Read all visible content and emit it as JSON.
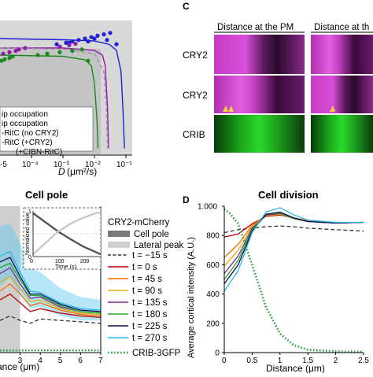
{
  "panel_c": {
    "letter": "C",
    "col_titles": [
      "Distance at the PM",
      "Distance at th"
    ],
    "row_labels": [
      "CRY2",
      "CRY2",
      "CRIB"
    ]
  },
  "chart_data": [
    {
      "panel": "B-top (partial)",
      "type": "line",
      "xlabel_prefix": "D",
      "xlabel_unit": "(μm²/s)",
      "xticks": [
        "10⁻⁴",
        "10⁻³",
        "10⁻²",
        "10⁻¹"
      ],
      "xtick_partial": "-5",
      "legend": [
        "ip occupation",
        "ip occupation",
        "-RitC (no CRY2)",
        "-RitC (+CRY2)",
        "(+CIBN-RitC)"
      ],
      "series": [
        {
          "color": "#1f1fd6",
          "x": [
            1e-05,
            0.001,
            0.01,
            0.03,
            0.05,
            0.07,
            0.08,
            0.09
          ],
          "y": [
            0.98,
            0.97,
            0.96,
            0.93,
            0.88,
            0.7,
            0.4,
            0.05
          ]
        },
        {
          "color": "#8e1ca8",
          "x": [
            1e-05,
            0.001,
            0.01,
            0.018,
            0.022,
            0.026,
            0.028
          ],
          "y": [
            0.9,
            0.9,
            0.88,
            0.84,
            0.75,
            0.4,
            0.05
          ]
        },
        {
          "color": "#1a8a1a",
          "x": [
            1e-05,
            0.001,
            0.005,
            0.008,
            0.01,
            0.012,
            0.013
          ],
          "y": [
            0.84,
            0.83,
            0.8,
            0.75,
            0.6,
            0.3,
            0.05
          ]
        },
        {
          "color": "#999999",
          "dash": true,
          "x": [
            1e-05,
            0.001,
            0.01,
            0.02,
            0.024,
            0.026
          ],
          "y": [
            0.9,
            0.89,
            0.85,
            0.7,
            0.4,
            0.05
          ]
        }
      ]
    },
    {
      "panel": "B",
      "type": "line",
      "title": "Cell pole",
      "xlabel": "Distance (μm)",
      "xlabel_partial": "ance (μm)",
      "xlim": [
        2,
        7
      ],
      "xticks": [
        3,
        4,
        5,
        6,
        7
      ],
      "ylim": [
        0,
        1
      ],
      "shaded_band_x": [
        2,
        3
      ],
      "legend_title": "CRY2-mCherry",
      "legend_gray": [
        "Cell pole",
        "Lateral peak"
      ],
      "series": [
        {
          "name": "t = −15 s",
          "color": "#333333",
          "dash": true,
          "x": [
            2.0,
            2.5,
            3.0,
            3.5,
            4.0,
            5.0,
            6.0,
            7.0
          ],
          "y": [
            0.22,
            0.25,
            0.22,
            0.2,
            0.23,
            0.22,
            0.21,
            0.2
          ]
        },
        {
          "name": "t = 0 s",
          "color": "#c00000",
          "x": [
            2.0,
            2.5,
            3.0,
            3.5,
            4.0,
            5.0,
            6.0,
            7.0
          ],
          "y": [
            0.36,
            0.4,
            0.34,
            0.28,
            0.3,
            0.27,
            0.25,
            0.24
          ]
        },
        {
          "name": "t = 45 s",
          "color": "#ff6a00",
          "x": [
            2.0,
            2.5,
            3.0,
            3.5,
            4.0,
            5.0,
            6.0,
            7.0
          ],
          "y": [
            0.42,
            0.47,
            0.4,
            0.32,
            0.34,
            0.29,
            0.26,
            0.25
          ]
        },
        {
          "name": "t = 90 s",
          "color": "#e0b000",
          "x": [
            2.0,
            2.5,
            3.0,
            3.5,
            4.0,
            5.0,
            6.0,
            7.0
          ],
          "y": [
            0.48,
            0.52,
            0.44,
            0.35,
            0.36,
            0.3,
            0.27,
            0.26
          ]
        },
        {
          "name": "t = 135 s",
          "color": "#7b2a8c",
          "x": [
            2.0,
            2.5,
            3.0,
            3.5,
            4.0,
            5.0,
            6.0,
            7.0
          ],
          "y": [
            0.54,
            0.58,
            0.47,
            0.37,
            0.38,
            0.31,
            0.28,
            0.27
          ]
        },
        {
          "name": "t = 180 s",
          "color": "#2aa82a",
          "x": [
            2.0,
            2.5,
            3.0,
            3.5,
            4.0,
            5.0,
            6.0,
            7.0
          ],
          "y": [
            0.58,
            0.61,
            0.5,
            0.39,
            0.39,
            0.32,
            0.28,
            0.27
          ]
        },
        {
          "name": "t = 225 s",
          "color": "#0d0d50",
          "x": [
            2.0,
            2.5,
            3.0,
            3.5,
            4.0,
            5.0,
            6.0,
            7.0
          ],
          "y": [
            0.62,
            0.65,
            0.52,
            0.4,
            0.4,
            0.33,
            0.29,
            0.28
          ]
        },
        {
          "name": "t = 270 s",
          "color": "#28b6e8",
          "x": [
            2.0,
            2.5,
            3.0,
            3.5,
            4.0,
            5.0,
            6.0,
            7.0
          ],
          "y": [
            0.66,
            0.69,
            0.55,
            0.42,
            0.41,
            0.34,
            0.3,
            0.29
          ]
        },
        {
          "name": "CRIB-3GFP",
          "color": "#1a9a3a",
          "dotted": true,
          "x": [
            2.0,
            3.0,
            4.0,
            5.0,
            6.0,
            7.0
          ],
          "y": [
            0.015,
            0.015,
            0.015,
            0.015,
            0.015,
            0.015
          ]
        }
      ],
      "band": {
        "x": [
          2.0,
          2.5,
          3.0,
          3.5,
          4.0,
          5.0,
          6.0,
          7.0
        ],
        "low": [
          0.45,
          0.52,
          0.4,
          0.3,
          0.31,
          0.25,
          0.22,
          0.22
        ],
        "high": [
          0.86,
          0.88,
          0.75,
          0.58,
          0.55,
          0.44,
          0.38,
          0.36
        ]
      }
    },
    {
      "panel": "B-inset",
      "type": "line",
      "xlabel": "Time (s)",
      "ylabel": "Normalized value",
      "xlim": [
        0,
        270
      ],
      "ylim": [
        0,
        1
      ],
      "xticks": [
        0,
        100,
        200
      ],
      "yticks": [
        0,
        1
      ],
      "series": [
        {
          "name": "Cell pole",
          "color": "#555555",
          "x": [
            0,
            50,
            100,
            150,
            200,
            250,
            270
          ],
          "y": [
            0.95,
            0.75,
            0.55,
            0.38,
            0.22,
            0.1,
            0.05
          ]
        },
        {
          "name": "Lateral peak",
          "color": "#c8c8c8",
          "x": [
            0,
            50,
            100,
            150,
            200,
            250,
            270
          ],
          "y": [
            0.05,
            0.3,
            0.55,
            0.72,
            0.85,
            0.95,
            0.97
          ]
        }
      ]
    },
    {
      "panel": "D",
      "type": "line",
      "letter": "D",
      "title": "Cell division",
      "xlabel": "Distance (μm)",
      "ylabel": "Average cortical intensity (A.U.)",
      "xlim": [
        0,
        2.5
      ],
      "ylim": [
        0,
        1000
      ],
      "xticks": [
        0,
        0.5,
        1,
        1.5,
        2,
        2.5
      ],
      "xtick_labels": [
        "0",
        "0.5",
        "1",
        "1.5",
        "2",
        "2.5"
      ],
      "yticks": [
        0,
        200,
        400,
        600,
        800,
        1000
      ],
      "series": [
        {
          "name": "t = −15 s",
          "color": "#333333",
          "dash": true,
          "x": [
            0,
            0.25,
            0.5,
            0.75,
            1.0,
            1.25,
            1.5,
            2.0,
            2.5
          ],
          "y": [
            820,
            840,
            850,
            860,
            865,
            860,
            850,
            840,
            830
          ]
        },
        {
          "name": "t = 0 s",
          "color": "#c00000",
          "x": [
            0,
            0.25,
            0.5,
            0.75,
            1.0,
            1.25,
            1.5,
            2.0,
            2.5
          ],
          "y": [
            790,
            810,
            880,
            930,
            940,
            920,
            900,
            885,
            890
          ]
        },
        {
          "name": "t = 45 s",
          "color": "#ff6a00",
          "x": [
            0,
            0.25,
            0.5,
            0.75,
            1.0,
            1.25,
            1.5,
            2.0,
            2.5
          ],
          "y": [
            650,
            740,
            870,
            935,
            945,
            920,
            900,
            885,
            890
          ]
        },
        {
          "name": "t = 90 s",
          "color": "#e0b000",
          "x": [
            0,
            0.25,
            0.5,
            0.75,
            1.0,
            1.25,
            1.5,
            2.0,
            2.5
          ],
          "y": [
            590,
            700,
            860,
            935,
            945,
            915,
            895,
            885,
            890
          ]
        },
        {
          "name": "t = 135 s",
          "color": "#7b2a8c",
          "x": [
            0,
            0.25,
            0.5,
            0.75,
            1.0,
            1.25,
            1.5,
            2.0,
            2.5
          ],
          "y": [
            540,
            660,
            850,
            940,
            950,
            915,
            895,
            885,
            890
          ]
        },
        {
          "name": "t = 180 s",
          "color": "#2aa82a",
          "x": [
            0,
            0.25,
            0.5,
            0.75,
            1.0,
            1.25,
            1.5,
            2.0,
            2.5
          ],
          "y": [
            500,
            630,
            840,
            945,
            955,
            915,
            895,
            885,
            890
          ]
        },
        {
          "name": "t = 225 s",
          "color": "#0d0d50",
          "x": [
            0,
            0.25,
            0.5,
            0.75,
            1.0,
            1.25,
            1.5,
            2.0,
            2.5
          ],
          "y": [
            470,
            600,
            830,
            945,
            960,
            920,
            895,
            885,
            890
          ]
        },
        {
          "name": "t = 270 s",
          "color": "#28b6e8",
          "x": [
            0,
            0.25,
            0.5,
            0.75,
            1.0,
            1.25,
            1.5,
            2.0,
            2.5
          ],
          "y": [
            420,
            560,
            820,
            960,
            990,
            940,
            905,
            890,
            890
          ]
        },
        {
          "name": "CRIB-3GFP",
          "color": "#1a9a3a",
          "dotted": true,
          "x": [
            0,
            0.1,
            0.25,
            0.5,
            0.75,
            1.0,
            1.25,
            1.5,
            2.0,
            2.5
          ],
          "y": [
            980,
            950,
            880,
            600,
            310,
            130,
            50,
            20,
            8,
            5
          ]
        }
      ]
    }
  ]
}
